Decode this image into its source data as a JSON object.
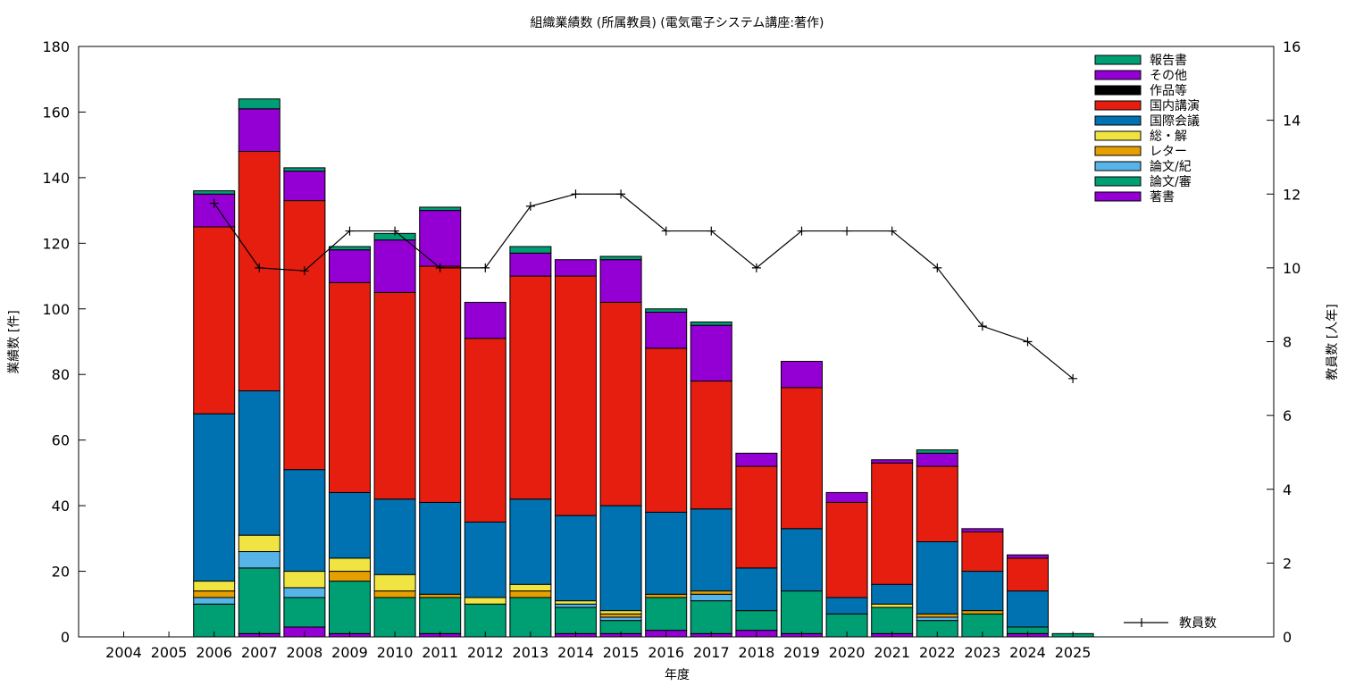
{
  "chart_data": {
    "type": "bar",
    "title": "組織業績数 (所属教員) (電気電子システム講座:著作)",
    "xlabel": "年度",
    "ylabel": "業績数 [件]",
    "y2label": "教員数 [人年]",
    "ylim": [
      0,
      180
    ],
    "y2lim": [
      0,
      16
    ],
    "yticks": [
      "0",
      "20",
      "40",
      "60",
      "80",
      "100",
      "120",
      "140",
      "160",
      "180"
    ],
    "y2ticks": [
      "0",
      "2",
      "4",
      "6",
      "8",
      "10",
      "12",
      "14",
      "16"
    ],
    "categories": [
      "2004",
      "2005",
      "2006",
      "2007",
      "2008",
      "2009",
      "2010",
      "2011",
      "2012",
      "2013",
      "2014",
      "2015",
      "2016",
      "2017",
      "2018",
      "2019",
      "2020",
      "2021",
      "2022",
      "2023",
      "2024",
      "2025"
    ],
    "legend_position": "top-right",
    "stack_order_bottom_to_top": [
      "著書",
      "論文/審",
      "論文/紀",
      "レター",
      "総・解",
      "国際会議",
      "国内講演",
      "作品等",
      "その他",
      "報告書"
    ],
    "series": [
      {
        "name": "報告書",
        "color": "#009e73",
        "values": [
          0,
          0,
          1,
          3,
          1,
          1,
          2,
          1,
          0,
          2,
          0,
          1,
          1,
          1,
          0,
          0,
          0,
          0,
          1,
          0,
          0,
          0
        ]
      },
      {
        "name": "その他",
        "color": "#9400d3",
        "values": [
          0,
          0,
          10,
          13,
          9,
          10,
          16,
          17,
          11,
          7,
          5,
          13,
          11,
          17,
          4,
          8,
          3,
          1,
          4,
          1,
          1,
          0
        ]
      },
      {
        "name": "作品等",
        "color": "#000000",
        "values": [
          0,
          0,
          0,
          0,
          0,
          0,
          0,
          0,
          0,
          0,
          0,
          0,
          0,
          0,
          0,
          0,
          0,
          0,
          0,
          0,
          0,
          0
        ]
      },
      {
        "name": "国内講演",
        "color": "#e51e10",
        "values": [
          0,
          0,
          57,
          73,
          82,
          64,
          63,
          72,
          56,
          68,
          73,
          62,
          50,
          39,
          31,
          43,
          29,
          37,
          23,
          12,
          10,
          0
        ]
      },
      {
        "name": "国際会議",
        "color": "#0072b2",
        "values": [
          0,
          0,
          51,
          44,
          31,
          20,
          23,
          28,
          23,
          26,
          26,
          32,
          25,
          25,
          13,
          19,
          5,
          6,
          22,
          12,
          11,
          0
        ]
      },
      {
        "name": "総・解",
        "color": "#f0e442",
        "values": [
          0,
          0,
          3,
          5,
          5,
          4,
          5,
          0,
          2,
          2,
          1,
          1,
          0,
          0,
          0,
          0,
          0,
          1,
          0,
          0,
          0,
          0
        ]
      },
      {
        "name": "レター",
        "color": "#e69f00",
        "values": [
          0,
          0,
          2,
          0,
          0,
          3,
          2,
          1,
          0,
          2,
          0,
          1,
          1,
          1,
          0,
          0,
          0,
          0,
          1,
          1,
          0,
          0
        ]
      },
      {
        "name": "論文/紀",
        "color": "#56b4e9",
        "values": [
          0,
          0,
          2,
          5,
          3,
          0,
          0,
          0,
          0,
          0,
          1,
          1,
          0,
          2,
          0,
          0,
          0,
          0,
          1,
          0,
          0,
          0
        ]
      },
      {
        "name": "論文/審",
        "color": "#009e73",
        "values": [
          0,
          0,
          10,
          20,
          9,
          16,
          12,
          11,
          10,
          12,
          8,
          4,
          10,
          10,
          6,
          13,
          7,
          8,
          5,
          7,
          2,
          1
        ]
      },
      {
        "name": "著書",
        "color": "#9400d3",
        "values": [
          0,
          0,
          0,
          1,
          3,
          1,
          0,
          1,
          0,
          0,
          1,
          1,
          2,
          1,
          2,
          1,
          0,
          1,
          0,
          0,
          1,
          0
        ]
      }
    ],
    "line_series": {
      "name": "教員数",
      "axis": "y2",
      "color": "#000000",
      "x": [
        "2006",
        "2007",
        "2008",
        "2009",
        "2010",
        "2011",
        "2012",
        "2013",
        "2014",
        "2015",
        "2016",
        "2017",
        "2018",
        "2019",
        "2020",
        "2021",
        "2022",
        "2023",
        "2024",
        "2025"
      ],
      "values": [
        11.75,
        10,
        9.92,
        11,
        11,
        10,
        10,
        11.67,
        12,
        12,
        11,
        11,
        10,
        11,
        11,
        11,
        10,
        8.42,
        8,
        7
      ]
    }
  }
}
